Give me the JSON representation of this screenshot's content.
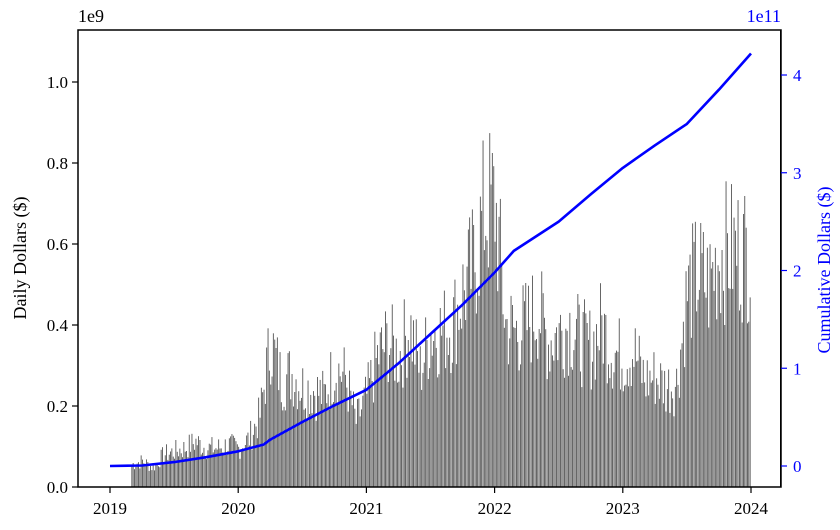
{
  "chart_data": {
    "type": "bar+line",
    "title": "",
    "xlabel": "",
    "ylabel": "Daily Dollars ($)",
    "y2label": "Cumulative Dollars ($)",
    "y_multiplier": "1e9",
    "y2_multiplier": "1e11",
    "xlim": [
      2018.75,
      2024.25
    ],
    "ylim": [
      0,
      1.13
    ],
    "y2lim": [
      -0.22,
      4.4
    ],
    "x_ticks": [
      "2019",
      "2020",
      "2021",
      "2022",
      "2023",
      "2024"
    ],
    "y_ticks": [
      "0.0",
      "0.2",
      "0.4",
      "0.6",
      "0.8",
      "1.0"
    ],
    "y2_ticks": [
      "0",
      "1",
      "2",
      "3",
      "4"
    ],
    "grid": false,
    "colors": {
      "bars": "#555555",
      "line": "#0000ff",
      "axis2": "#0000ff"
    },
    "daily_series": {
      "name": "Daily Dollars",
      "units": "1e9 $",
      "months": [
        "2019-03",
        "2019-04",
        "2019-05",
        "2019-06",
        "2019-07",
        "2019-08",
        "2019-09",
        "2019-10",
        "2019-11",
        "2019-12",
        "2020-01",
        "2020-02",
        "2020-03",
        "2020-04",
        "2020-05",
        "2020-06",
        "2020-07",
        "2020-08",
        "2020-09",
        "2020-10",
        "2020-11",
        "2020-12",
        "2021-01",
        "2021-02",
        "2021-03",
        "2021-04",
        "2021-05",
        "2021-06",
        "2021-07",
        "2021-08",
        "2021-09",
        "2021-10",
        "2021-11",
        "2021-12",
        "2022-01",
        "2022-02",
        "2022-03",
        "2022-04",
        "2022-05",
        "2022-06",
        "2022-07",
        "2022-08",
        "2022-09",
        "2022-10",
        "2022-11",
        "2022-12",
        "2023-01",
        "2023-02",
        "2023-03",
        "2023-04",
        "2023-05",
        "2023-06",
        "2023-07",
        "2023-08",
        "2023-09",
        "2023-10",
        "2023-11",
        "2023-12"
      ],
      "values": [
        0.07,
        0.08,
        0.06,
        0.1,
        0.11,
        0.12,
        0.14,
        0.12,
        0.12,
        0.13,
        0.12,
        0.15,
        0.22,
        0.45,
        0.33,
        0.35,
        0.31,
        0.3,
        0.28,
        0.37,
        0.34,
        0.2,
        0.28,
        0.4,
        0.45,
        0.4,
        0.5,
        0.36,
        0.48,
        0.48,
        0.5,
        0.6,
        0.68,
        0.85,
        0.88,
        0.5,
        0.48,
        0.5,
        0.55,
        0.45,
        0.48,
        0.5,
        0.45,
        0.43,
        0.5,
        0.42,
        0.4,
        0.42,
        0.33,
        0.34,
        0.31,
        0.32,
        0.6,
        0.66,
        0.62,
        0.72,
        0.73,
        0.73
      ]
    },
    "cumulative_series": {
      "name": "Cumulative Dollars",
      "units": "1e11 $",
      "x": [
        2019.0,
        2019.25,
        2019.5,
        2019.75,
        2020.0,
        2020.2,
        2020.25,
        2020.5,
        2020.75,
        2021.0,
        2021.25,
        2021.5,
        2021.75,
        2022.0,
        2022.15,
        2022.5,
        2022.75,
        2023.0,
        2023.25,
        2023.5,
        2023.75,
        2024.0
      ],
      "y": [
        0,
        0.005,
        0.04,
        0.09,
        0.15,
        0.22,
        0.27,
        0.45,
        0.62,
        0.78,
        1.05,
        1.35,
        1.65,
        1.98,
        2.2,
        2.5,
        2.78,
        3.05,
        3.28,
        3.5,
        3.85,
        4.22
      ]
    }
  }
}
